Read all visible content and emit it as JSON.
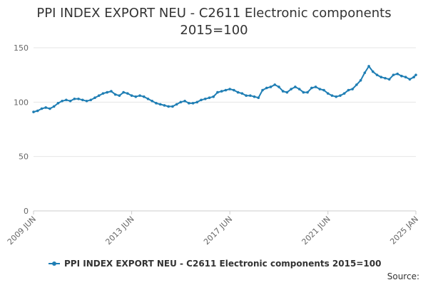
{
  "chart_data": {
    "type": "line",
    "title": "PPI INDEX EXPORT NEU - C2611 Electronic components",
    "subtitle": "2015=100",
    "ylim": [
      0,
      150
    ],
    "y_ticks": [
      "0",
      "50",
      "100",
      "150"
    ],
    "x_ticks": [
      "2009 JUN",
      "2013 JUN",
      "2017 JUN",
      "2021 JUN",
      "2025 JAN"
    ],
    "x_start": "2009-06",
    "x_end": "2025-01",
    "series": [
      {
        "name": "PPI INDEX EXPORT NEU - C2611 Electronic components 2015=100",
        "color": "#1f7eb4",
        "points": [
          [
            "2009-06",
            91
          ],
          [
            "2009-08",
            92
          ],
          [
            "2009-10",
            94
          ],
          [
            "2009-12",
            95
          ],
          [
            "2010-02",
            94
          ],
          [
            "2010-04",
            96
          ],
          [
            "2010-06",
            99
          ],
          [
            "2010-08",
            101
          ],
          [
            "2010-10",
            102
          ],
          [
            "2010-12",
            101
          ],
          [
            "2011-02",
            103
          ],
          [
            "2011-04",
            103
          ],
          [
            "2011-06",
            102
          ],
          [
            "2011-08",
            101
          ],
          [
            "2011-10",
            102
          ],
          [
            "2011-12",
            104
          ],
          [
            "2012-02",
            106
          ],
          [
            "2012-04",
            108
          ],
          [
            "2012-06",
            109
          ],
          [
            "2012-08",
            110
          ],
          [
            "2012-10",
            107
          ],
          [
            "2012-12",
            106
          ],
          [
            "2013-02",
            109
          ],
          [
            "2013-04",
            108
          ],
          [
            "2013-06",
            106
          ],
          [
            "2013-08",
            105
          ],
          [
            "2013-10",
            106
          ],
          [
            "2013-12",
            105
          ],
          [
            "2014-02",
            103
          ],
          [
            "2014-04",
            101
          ],
          [
            "2014-06",
            99
          ],
          [
            "2014-08",
            98
          ],
          [
            "2014-10",
            97
          ],
          [
            "2014-12",
            96
          ],
          [
            "2015-02",
            96
          ],
          [
            "2015-04",
            98
          ],
          [
            "2015-06",
            100
          ],
          [
            "2015-08",
            101
          ],
          [
            "2015-10",
            99
          ],
          [
            "2015-12",
            99
          ],
          [
            "2016-02",
            100
          ],
          [
            "2016-04",
            102
          ],
          [
            "2016-06",
            103
          ],
          [
            "2016-08",
            104
          ],
          [
            "2016-10",
            105
          ],
          [
            "2016-12",
            109
          ],
          [
            "2017-02",
            110
          ],
          [
            "2017-04",
            111
          ],
          [
            "2017-06",
            112
          ],
          [
            "2017-08",
            111
          ],
          [
            "2017-10",
            109
          ],
          [
            "2017-12",
            108
          ],
          [
            "2018-02",
            106
          ],
          [
            "2018-04",
            106
          ],
          [
            "2018-06",
            105
          ],
          [
            "2018-08",
            104
          ],
          [
            "2018-10",
            111
          ],
          [
            "2018-12",
            113
          ],
          [
            "2019-02",
            114
          ],
          [
            "2019-04",
            116
          ],
          [
            "2019-06",
            114
          ],
          [
            "2019-08",
            110
          ],
          [
            "2019-10",
            109
          ],
          [
            "2019-12",
            112
          ],
          [
            "2020-02",
            114
          ],
          [
            "2020-04",
            112
          ],
          [
            "2020-06",
            109
          ],
          [
            "2020-08",
            109
          ],
          [
            "2020-10",
            113
          ],
          [
            "2020-12",
            114
          ],
          [
            "2021-02",
            112
          ],
          [
            "2021-04",
            111
          ],
          [
            "2021-06",
            108
          ],
          [
            "2021-08",
            106
          ],
          [
            "2021-10",
            105
          ],
          [
            "2021-12",
            106
          ],
          [
            "2022-02",
            108
          ],
          [
            "2022-04",
            111
          ],
          [
            "2022-06",
            112
          ],
          [
            "2022-08",
            116
          ],
          [
            "2022-10",
            120
          ],
          [
            "2022-12",
            127
          ],
          [
            "2023-02",
            133
          ],
          [
            "2023-04",
            128
          ],
          [
            "2023-06",
            125
          ],
          [
            "2023-08",
            123
          ],
          [
            "2023-10",
            122
          ],
          [
            "2023-12",
            121
          ],
          [
            "2024-02",
            125
          ],
          [
            "2024-04",
            126
          ],
          [
            "2024-06",
            124
          ],
          [
            "2024-08",
            123
          ],
          [
            "2024-10",
            121
          ],
          [
            "2024-12",
            123
          ],
          [
            "2025-01",
            125
          ]
        ]
      }
    ],
    "grid": true,
    "legend_position": "bottom",
    "source_label": "Source:"
  }
}
